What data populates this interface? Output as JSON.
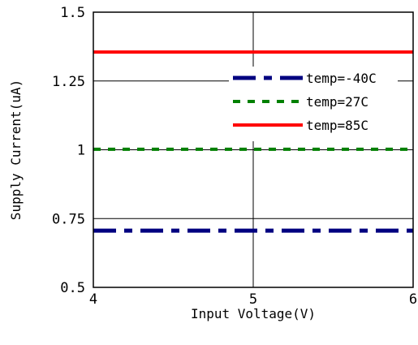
{
  "chart_data": {
    "type": "line",
    "xlabel": "Input Voltage(V)",
    "ylabel": "Supply Current(uA)",
    "xlim": [
      4,
      6
    ],
    "ylim": [
      0.5,
      1.5
    ],
    "x_ticks": [
      4,
      5,
      6
    ],
    "x_tick_labels": [
      "4",
      "5",
      "6"
    ],
    "y_ticks": [
      0.5,
      0.75,
      1,
      1.25,
      1.5
    ],
    "y_tick_labels": [
      "0.5",
      "0.75",
      "1",
      "1.25",
      "1.5"
    ],
    "grid": true,
    "legend_position": "top-right",
    "series": [
      {
        "name": "temp=-40C",
        "x": [
          4,
          6
        ],
        "y": [
          0.706,
          0.706
        ],
        "color": "#000080",
        "line_style": "dash-dot"
      },
      {
        "name": "temp=27C",
        "x": [
          4,
          6
        ],
        "y": [
          1.002,
          1.002
        ],
        "color": "#008000",
        "line_style": "dashed"
      },
      {
        "name": "temp=85C",
        "x": [
          4,
          6
        ],
        "y": [
          1.355,
          1.355
        ],
        "color": "#ff0000",
        "line_style": "solid"
      }
    ]
  }
}
